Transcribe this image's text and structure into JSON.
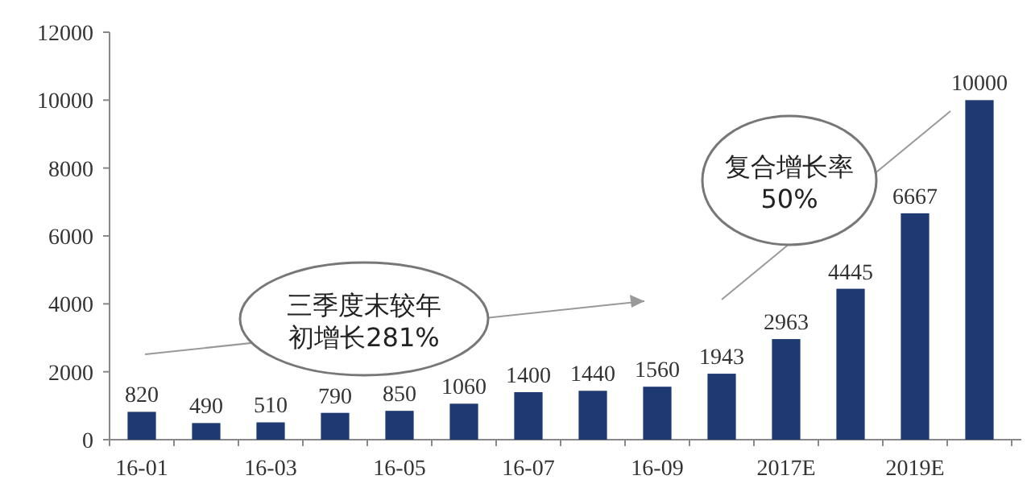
{
  "chart_data": {
    "type": "bar",
    "categories": [
      "16-01",
      null,
      "16-03",
      null,
      "16-05",
      null,
      "16-07",
      null,
      "16-09",
      null,
      "2017E",
      null,
      "2019E",
      null
    ],
    "values": [
      820,
      490,
      510,
      790,
      850,
      1060,
      1400,
      1440,
      1560,
      1943,
      2963,
      4445,
      6667,
      10000
    ],
    "color": "#1f3a73",
    "ylim": [
      0,
      12000
    ],
    "yticks": [
      0,
      2000,
      4000,
      6000,
      8000,
      10000,
      12000
    ],
    "data_labels": true,
    "annotations": [
      "三季度末较年初增长281%",
      "复合增长率50%"
    ]
  }
}
